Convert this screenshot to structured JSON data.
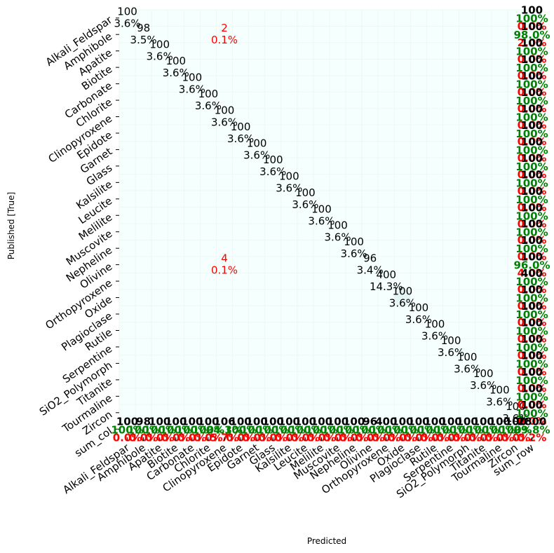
{
  "chart_data": {
    "type": "heatmap",
    "title": "",
    "xlabel": "Predicted",
    "ylabel": "Published [True]",
    "categories": [
      "Alkali_Feldspar",
      "Amphibole",
      "Apatite",
      "Biotite",
      "Carbonate",
      "Chlorite",
      "Clinopyroxene",
      "Epidote",
      "Garnet",
      "Glass",
      "Kalsilite",
      "Leucite",
      "Melilite",
      "Muscovite",
      "Nepheline",
      "Olivine",
      "Orthopyroxene",
      "Oxide",
      "Plagioclase",
      "Rutile",
      "Serpentine",
      "SiO2_Polymorph",
      "Titanite",
      "Tourmaline",
      "Zircon"
    ],
    "x_extra_label": "sum_row",
    "y_extra_label": "sum_col",
    "diagonal": [
      {
        "count": "100",
        "pct": "3.6%"
      },
      {
        "count": "98",
        "pct": "3.5%"
      },
      {
        "count": "100",
        "pct": "3.6%"
      },
      {
        "count": "100",
        "pct": "3.6%"
      },
      {
        "count": "100",
        "pct": "3.6%"
      },
      {
        "count": "100",
        "pct": "3.6%"
      },
      {
        "count": "100",
        "pct": "3.6%"
      },
      {
        "count": "100",
        "pct": "3.6%"
      },
      {
        "count": "100",
        "pct": "3.6%"
      },
      {
        "count": "100",
        "pct": "3.6%"
      },
      {
        "count": "100",
        "pct": "3.6%"
      },
      {
        "count": "100",
        "pct": "3.6%"
      },
      {
        "count": "100",
        "pct": "3.6%"
      },
      {
        "count": "100",
        "pct": "3.6%"
      },
      {
        "count": "100",
        "pct": "3.6%"
      },
      {
        "count": "96",
        "pct": "3.4%"
      },
      {
        "count": "400",
        "pct": "14.3%"
      },
      {
        "count": "100",
        "pct": "3.6%"
      },
      {
        "count": "100",
        "pct": "3.6%"
      },
      {
        "count": "100",
        "pct": "3.6%"
      },
      {
        "count": "100",
        "pct": "3.6%"
      },
      {
        "count": "100",
        "pct": "3.6%"
      },
      {
        "count": "100",
        "pct": "3.6%"
      },
      {
        "count": "100",
        "pct": "3.6%"
      },
      {
        "count": "100",
        "pct": "3.6%"
      }
    ],
    "off_diagonal": [
      {
        "row": "Amphibole",
        "col": "Clinopyroxene",
        "count": "2",
        "pct": "0.1%"
      },
      {
        "row": "Olivine",
        "col": "Clinopyroxene",
        "count": "4",
        "pct": "0.1%"
      }
    ],
    "row_sums": [
      {
        "total": "100",
        "correct": "100%",
        "wrong": "0.0%"
      },
      {
        "total": "100",
        "correct": "98.0%",
        "wrong": "2.0%"
      },
      {
        "total": "100",
        "correct": "100%",
        "wrong": "0.0%"
      },
      {
        "total": "100",
        "correct": "100%",
        "wrong": "0.0%"
      },
      {
        "total": "100",
        "correct": "100%",
        "wrong": "0.0%"
      },
      {
        "total": "100",
        "correct": "100%",
        "wrong": "0.0%"
      },
      {
        "total": "100",
        "correct": "100%",
        "wrong": "0.0%"
      },
      {
        "total": "100",
        "correct": "100%",
        "wrong": "0.0%"
      },
      {
        "total": "100",
        "correct": "100%",
        "wrong": "0.0%"
      },
      {
        "total": "100",
        "correct": "100%",
        "wrong": "0.0%"
      },
      {
        "total": "100",
        "correct": "100%",
        "wrong": "0.0%"
      },
      {
        "total": "100",
        "correct": "100%",
        "wrong": "0.0%"
      },
      {
        "total": "100",
        "correct": "100%",
        "wrong": "0.0%"
      },
      {
        "total": "100",
        "correct": "100%",
        "wrong": "0.0%"
      },
      {
        "total": "100",
        "correct": "100%",
        "wrong": "0.0%"
      },
      {
        "total": "100",
        "correct": "96.0%",
        "wrong": "4.0%"
      },
      {
        "total": "400",
        "correct": "100%",
        "wrong": "0.0%"
      },
      {
        "total": "100",
        "correct": "100%",
        "wrong": "0.0%"
      },
      {
        "total": "100",
        "correct": "100%",
        "wrong": "0.0%"
      },
      {
        "total": "100",
        "correct": "100%",
        "wrong": "0.0%"
      },
      {
        "total": "100",
        "correct": "100%",
        "wrong": "0.0%"
      },
      {
        "total": "100",
        "correct": "100%",
        "wrong": "0.0%"
      },
      {
        "total": "100",
        "correct": "100%",
        "wrong": "0.0%"
      },
      {
        "total": "100",
        "correct": "100%",
        "wrong": "0.0%"
      },
      {
        "total": "100",
        "correct": "100%",
        "wrong": "0.0%"
      }
    ],
    "col_sums": [
      {
        "total": "100",
        "correct": "100%",
        "wrong": "0.0%"
      },
      {
        "total": "98",
        "correct": "100%",
        "wrong": "0.0%"
      },
      {
        "total": "100",
        "correct": "100%",
        "wrong": "0.0%"
      },
      {
        "total": "100",
        "correct": "100%",
        "wrong": "0.0%"
      },
      {
        "total": "100",
        "correct": "100%",
        "wrong": "0.0%"
      },
      {
        "total": "100",
        "correct": "100%",
        "wrong": "0.0%"
      },
      {
        "total": "106",
        "correct": "94.3%",
        "wrong": "5.7%"
      },
      {
        "total": "100",
        "correct": "100%",
        "wrong": "0.0%"
      },
      {
        "total": "100",
        "correct": "100%",
        "wrong": "0.0%"
      },
      {
        "total": "100",
        "correct": "100%",
        "wrong": "0.0%"
      },
      {
        "total": "100",
        "correct": "100%",
        "wrong": "0.0%"
      },
      {
        "total": "100",
        "correct": "100%",
        "wrong": "0.0%"
      },
      {
        "total": "100",
        "correct": "100%",
        "wrong": "0.0%"
      },
      {
        "total": "100",
        "correct": "100%",
        "wrong": "0.0%"
      },
      {
        "total": "100",
        "correct": "100%",
        "wrong": "0.0%"
      },
      {
        "total": "96",
        "correct": "100%",
        "wrong": "0.0%"
      },
      {
        "total": "400",
        "correct": "100%",
        "wrong": "0.0%"
      },
      {
        "total": "100",
        "correct": "100%",
        "wrong": "0.0%"
      },
      {
        "total": "100",
        "correct": "100%",
        "wrong": "0.0%"
      },
      {
        "total": "100",
        "correct": "100%",
        "wrong": "0.0%"
      },
      {
        "total": "100",
        "correct": "100%",
        "wrong": "0.0%"
      },
      {
        "total": "100",
        "correct": "100%",
        "wrong": "0.0%"
      },
      {
        "total": "100",
        "correct": "100%",
        "wrong": "0.0%"
      },
      {
        "total": "100",
        "correct": "100%",
        "wrong": "0.0%"
      },
      {
        "total": "100",
        "correct": "100%",
        "wrong": "0.0%"
      }
    ],
    "grand_total": {
      "total": "2800",
      "correct": "99.8%",
      "wrong": "0.2%"
    },
    "grid": true,
    "colors": {
      "background": "#f5fffe",
      "highlight_cell": "#e4f5f3",
      "count_text": "#000000",
      "off_diag_text": "#ff0000",
      "correct_text": "#008000",
      "wrong_text": "#ff0000"
    }
  }
}
